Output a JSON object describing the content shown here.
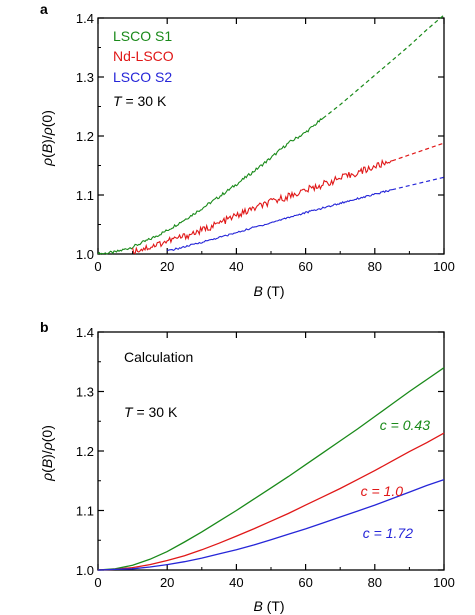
{
  "chart_data": [
    {
      "panel": "a",
      "type": "line",
      "xlabel": "B (T)",
      "ylabel": "ρ(B)/ρ(0)",
      "xlim": [
        0,
        100
      ],
      "ylim": [
        1.0,
        1.4
      ],
      "xticks": [
        0,
        20,
        40,
        60,
        80,
        100
      ],
      "yticks": [
        1.0,
        1.1,
        1.2,
        1.3,
        1.4
      ],
      "annotation": "T = 30 K",
      "legend": "top-left",
      "series": [
        {
          "name": "LSCO S1",
          "color": "#1a8a1a",
          "measured_x": [
            0,
            5,
            10,
            15,
            20,
            25,
            30,
            35,
            40,
            45,
            50,
            55,
            60,
            65
          ],
          "measured_y": [
            1.0,
            1.003,
            1.012,
            1.025,
            1.04,
            1.058,
            1.077,
            1.097,
            1.118,
            1.14,
            1.163,
            1.188,
            1.206,
            1.23
          ],
          "extrapolated_x": [
            65,
            70,
            75,
            80,
            85,
            90,
            95,
            100
          ],
          "extrapolated_y": [
            1.23,
            1.253,
            1.278,
            1.303,
            1.328,
            1.353,
            1.38,
            1.405
          ]
        },
        {
          "name": "Nd-LSCO",
          "color": "#e01818",
          "measured_x": [
            10,
            15,
            20,
            25,
            30,
            35,
            40,
            45,
            50,
            55,
            60,
            65,
            70,
            75,
            80,
            85
          ],
          "measured_y": [
            1.005,
            1.012,
            1.022,
            1.03,
            1.04,
            1.052,
            1.065,
            1.077,
            1.088,
            1.098,
            1.108,
            1.118,
            1.128,
            1.138,
            1.148,
            1.158
          ],
          "extrapolated_x": [
            85,
            90,
            95,
            100
          ],
          "extrapolated_y": [
            1.158,
            1.168,
            1.178,
            1.188
          ]
        },
        {
          "name": "LSCO S2",
          "color": "#2626d8",
          "measured_x": [
            20,
            25,
            30,
            35,
            40,
            45,
            50,
            55,
            60,
            65,
            70,
            75,
            80,
            85
          ],
          "measured_y": [
            1.005,
            1.012,
            1.02,
            1.028,
            1.036,
            1.045,
            1.053,
            1.062,
            1.07,
            1.078,
            1.086,
            1.094,
            1.101,
            1.109
          ],
          "extrapolated_x": [
            85,
            90,
            95,
            100
          ],
          "extrapolated_y": [
            1.109,
            1.116,
            1.123,
            1.13
          ]
        }
      ]
    },
    {
      "panel": "b",
      "type": "line",
      "xlabel": "B (T)",
      "ylabel": "ρ(B)/ρ(0)",
      "xlim": [
        0,
        100
      ],
      "ylim": [
        1.0,
        1.4
      ],
      "xticks": [
        0,
        20,
        40,
        60,
        80,
        100
      ],
      "yticks": [
        1.0,
        1.1,
        1.2,
        1.3,
        1.4
      ],
      "annotations": [
        "Calculation",
        "T = 30 K"
      ],
      "series": [
        {
          "name": "c = 0.43",
          "color": "#1a8a1a",
          "x": [
            0,
            5,
            10,
            15,
            20,
            25,
            30,
            35,
            40,
            45,
            50,
            55,
            60,
            65,
            70,
            75,
            80,
            85,
            90,
            95,
            100
          ],
          "y": [
            1.0,
            1.002,
            1.008,
            1.018,
            1.031,
            1.047,
            1.064,
            1.082,
            1.1,
            1.119,
            1.138,
            1.157,
            1.177,
            1.197,
            1.217,
            1.237,
            1.258,
            1.279,
            1.3,
            1.32,
            1.34
          ]
        },
        {
          "name": "c = 1.0",
          "color": "#e01818",
          "x": [
            0,
            5,
            10,
            15,
            20,
            25,
            30,
            35,
            40,
            45,
            50,
            55,
            60,
            65,
            70,
            75,
            80,
            85,
            90,
            95,
            100
          ],
          "y": [
            1.0,
            1.001,
            1.004,
            1.009,
            1.016,
            1.024,
            1.034,
            1.045,
            1.057,
            1.069,
            1.082,
            1.095,
            1.109,
            1.123,
            1.137,
            1.152,
            1.167,
            1.183,
            1.199,
            1.214,
            1.23
          ]
        },
        {
          "name": "c = 1.72",
          "color": "#2626d8",
          "x": [
            0,
            5,
            10,
            15,
            20,
            25,
            30,
            35,
            40,
            45,
            50,
            55,
            60,
            65,
            70,
            75,
            80,
            85,
            90,
            95,
            100
          ],
          "y": [
            1.0,
            1.001,
            1.002,
            1.005,
            1.009,
            1.014,
            1.02,
            1.027,
            1.034,
            1.042,
            1.051,
            1.06,
            1.069,
            1.079,
            1.089,
            1.099,
            1.109,
            1.12,
            1.131,
            1.142,
            1.152
          ]
        }
      ]
    }
  ],
  "panels": {
    "a": {
      "letter": "a",
      "legend": [
        "LSCO S1",
        "Nd-LSCO",
        "LSCO S2"
      ],
      "temp_prefix": "T",
      "temp_suffix": " = 30 K"
    },
    "b": {
      "letter": "b",
      "calc": "Calculation",
      "temp_prefix": "T",
      "temp_suffix": " = 30 K",
      "labels": [
        "c = 0.43",
        "c = 1.0",
        "c = 1.72"
      ]
    }
  },
  "axis_text": {
    "x_var": "B",
    "x_unit": " (T)",
    "y_rho": "ρ",
    "y_B": "B",
    "y_zero": "(0)"
  }
}
